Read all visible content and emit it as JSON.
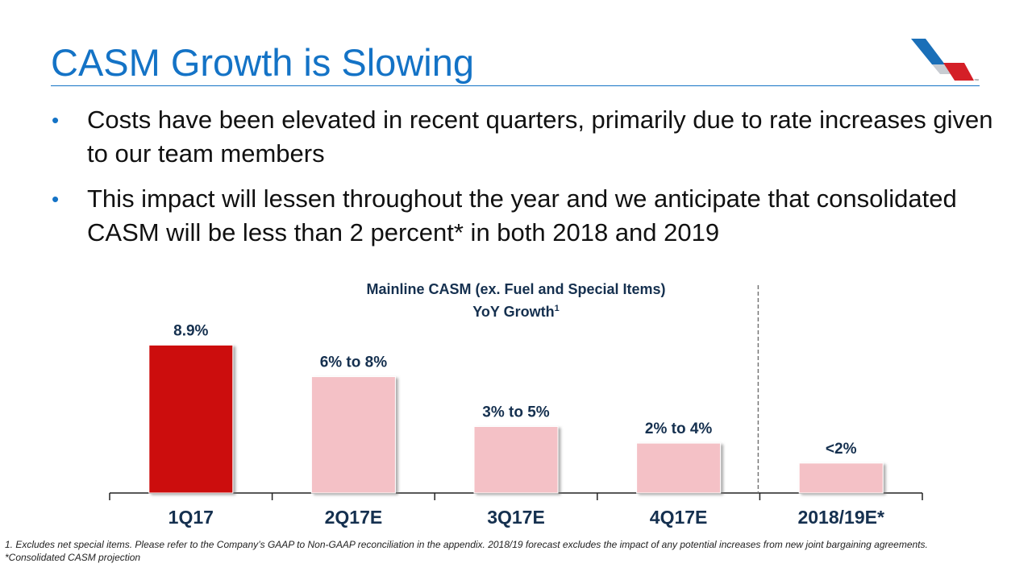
{
  "header": {
    "title": "CASM Growth is Slowing",
    "logo_icon": "american-airlines-logo-icon",
    "logo_mark": "™"
  },
  "bullets": [
    "Costs have been elevated in recent quarters, primarily due to rate increases given to our team members",
    "This impact will lessen throughout the year and we anticipate that consolidated CASM will be less than 2 percent* in both 2018 and 2019"
  ],
  "bullet_glyph": "•",
  "chart_data": {
    "type": "bar",
    "title": "Mainline CASM (ex. Fuel and Special Items)",
    "subtitle": "YoY Growth",
    "subtitle_footnote": "1",
    "categories": [
      "1Q17",
      "2Q17E",
      "3Q17E",
      "4Q17E",
      "2018/19E*"
    ],
    "values": [
      8.9,
      7.0,
      4.0,
      3.0,
      1.8
    ],
    "data_labels": [
      "8.9%",
      "6% to 8%",
      "3% to 5%",
      "2% to 4%",
      "<2%"
    ],
    "ylim": [
      0,
      9.5
    ],
    "xlabel": "",
    "ylabel": "",
    "grid": false,
    "colors": [
      "#cc0a0a",
      "#f4c1c6",
      "#f4c1c6",
      "#f4c1c6",
      "#f4c1c6"
    ],
    "separator_after_index": 3
  },
  "footnotes": [
    "1. Excludes net special items. Please refer to the Company’s GAAP to Non-GAAP reconciliation in the appendix. 2018/19 forecast excludes the impact of any potential increases from new joint bargaining agreements.",
    "*Consolidated CASM projection"
  ]
}
